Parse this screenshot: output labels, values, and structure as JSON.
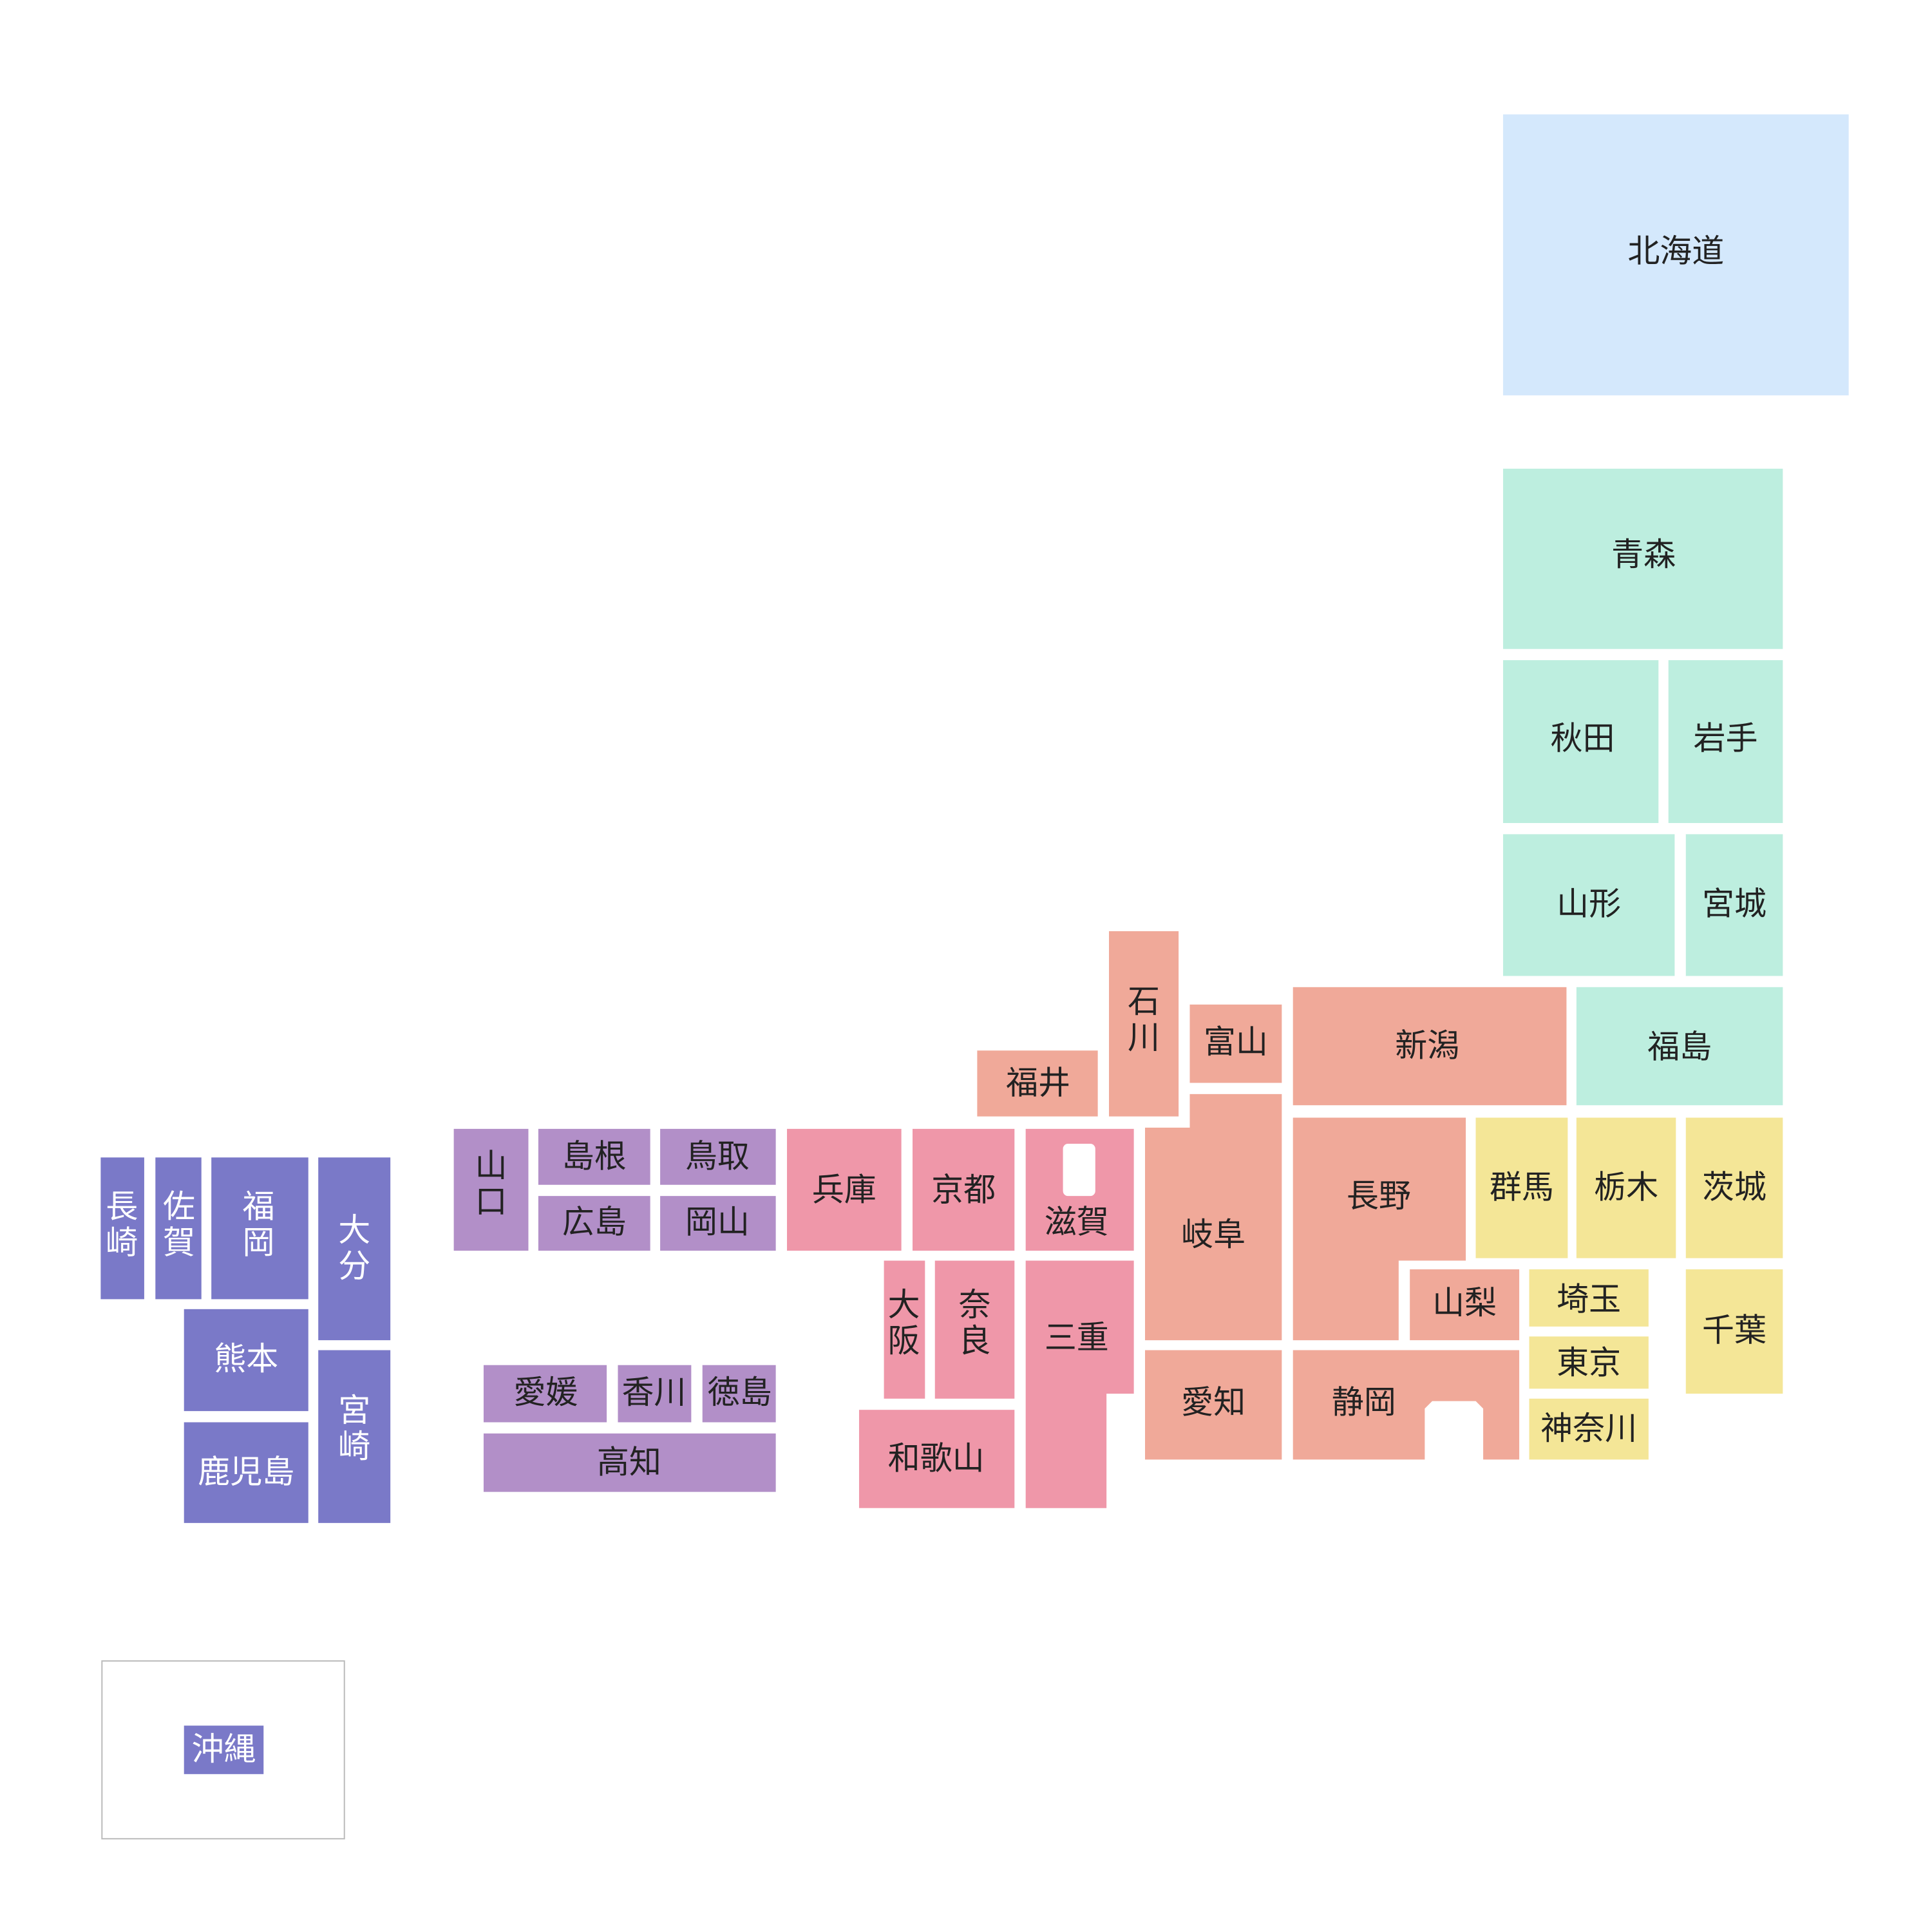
{
  "regions": {
    "hokkaido": {
      "color": "#d4e8fc",
      "text_color": "#222222"
    },
    "tohoku": {
      "color": "#bdeedf",
      "text_color": "#222222"
    },
    "kanto": {
      "color": "#f4e697",
      "text_color": "#222222"
    },
    "chubu": {
      "color": "#f0a999",
      "text_color": "#222222"
    },
    "kinki": {
      "color": "#ef97a9",
      "text_color": "#222222"
    },
    "chugoku_shikoku": {
      "color": "#b28fc8",
      "text_color": "#222222"
    },
    "kyushu": {
      "color": "#7a79c8",
      "text_color": "#ffffff"
    }
  },
  "prefectures": [
    {
      "id": "hokkaido",
      "name": "北海道",
      "region": "hokkaido"
    },
    {
      "id": "aomori",
      "name": "青森",
      "region": "tohoku"
    },
    {
      "id": "akita",
      "name": "秋田",
      "region": "tohoku"
    },
    {
      "id": "iwate",
      "name": "岩手",
      "region": "tohoku"
    },
    {
      "id": "yamagata",
      "name": "山形",
      "region": "tohoku"
    },
    {
      "id": "miyagi",
      "name": "宮城",
      "region": "tohoku"
    },
    {
      "id": "fukushima",
      "name": "福島",
      "region": "tohoku"
    },
    {
      "id": "gunma",
      "name": "群馬",
      "region": "kanto"
    },
    {
      "id": "tochigi",
      "name": "栃木",
      "region": "kanto"
    },
    {
      "id": "ibaraki",
      "name": "茨城",
      "region": "kanto"
    },
    {
      "id": "saitama",
      "name": "埼玉",
      "region": "kanto"
    },
    {
      "id": "tokyo",
      "name": "東京",
      "region": "kanto"
    },
    {
      "id": "kanagawa",
      "name": "神奈川",
      "region": "kanto"
    },
    {
      "id": "chiba",
      "name": "千葉",
      "region": "kanto"
    },
    {
      "id": "niigata",
      "name": "新潟",
      "region": "chubu"
    },
    {
      "id": "toyama",
      "name": "富山",
      "region": "chubu"
    },
    {
      "id": "ishikawa",
      "name": "石川",
      "region": "chubu"
    },
    {
      "id": "fukui",
      "name": "福井",
      "region": "chubu"
    },
    {
      "id": "gifu",
      "name": "岐阜",
      "region": "chubu"
    },
    {
      "id": "nagano",
      "name": "長野",
      "region": "chubu"
    },
    {
      "id": "yamanashi",
      "name": "山梨",
      "region": "chubu"
    },
    {
      "id": "aichi",
      "name": "愛知",
      "region": "chubu"
    },
    {
      "id": "shizuoka",
      "name": "静岡",
      "region": "chubu"
    },
    {
      "id": "hyogo",
      "name": "兵庫",
      "region": "kinki"
    },
    {
      "id": "kyoto",
      "name": "京都",
      "region": "kinki"
    },
    {
      "id": "shiga",
      "name": "滋賀",
      "region": "kinki"
    },
    {
      "id": "osaka",
      "name": "大阪",
      "region": "kinki"
    },
    {
      "id": "nara",
      "name": "奈良",
      "region": "kinki"
    },
    {
      "id": "mie",
      "name": "三重",
      "region": "kinki"
    },
    {
      "id": "wakayama",
      "name": "和歌山",
      "region": "kinki"
    },
    {
      "id": "yamaguchi",
      "name": "山口",
      "region": "chugoku_shikoku"
    },
    {
      "id": "shimane",
      "name": "島根",
      "region": "chugoku_shikoku"
    },
    {
      "id": "tottori",
      "name": "鳥取",
      "region": "chugoku_shikoku"
    },
    {
      "id": "hiroshima",
      "name": "広島",
      "region": "chugoku_shikoku"
    },
    {
      "id": "okayama",
      "name": "岡山",
      "region": "chugoku_shikoku"
    },
    {
      "id": "ehime",
      "name": "愛媛",
      "region": "chugoku_shikoku"
    },
    {
      "id": "kagawa",
      "name": "香川",
      "region": "chugoku_shikoku"
    },
    {
      "id": "tokushima",
      "name": "徳島",
      "region": "chugoku_shikoku"
    },
    {
      "id": "kochi",
      "name": "高知",
      "region": "chugoku_shikoku"
    },
    {
      "id": "nagasaki",
      "name": "長崎",
      "region": "kyushu"
    },
    {
      "id": "saga",
      "name": "佐賀",
      "region": "kyushu"
    },
    {
      "id": "fukuoka",
      "name": "福岡",
      "region": "kyushu"
    },
    {
      "id": "oita",
      "name": "大分",
      "region": "kyushu"
    },
    {
      "id": "kumamoto",
      "name": "熊本",
      "region": "kyushu"
    },
    {
      "id": "miyazaki",
      "name": "宮崎",
      "region": "kyushu"
    },
    {
      "id": "kagoshima",
      "name": "鹿児島",
      "region": "kyushu"
    },
    {
      "id": "okinawa",
      "name": "沖縄",
      "region": "kyushu"
    }
  ],
  "okinawa_frame": {
    "border_color": "#bbbbbb"
  }
}
